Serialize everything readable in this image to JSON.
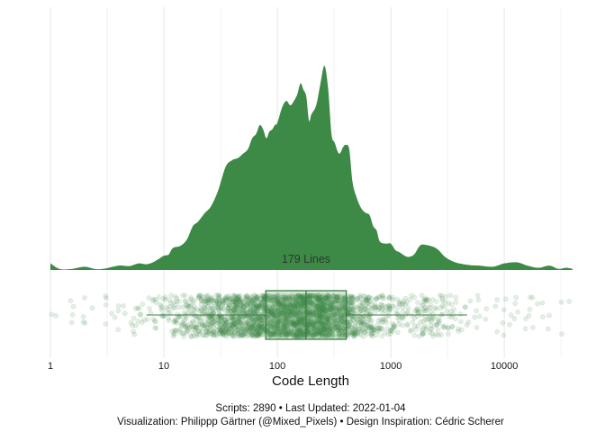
{
  "chart_data": {
    "type": "area",
    "subtype": "density + jittered points + boxplot (raincloud)",
    "xscale": "log10",
    "xlim": [
      1,
      40000
    ],
    "xlabel": "Code Length",
    "ticks": [
      1,
      10,
      100,
      1000,
      10000
    ],
    "tick_labels": [
      "1",
      "10",
      "100",
      "1000",
      "10000"
    ],
    "grid": "vertical major and minor lines",
    "fill_color": "#3d8a47",
    "point_color": "#3d8a47",
    "density": {
      "x": [
        1,
        1.2,
        1.5,
        2,
        2.5,
        3,
        4,
        5,
        6,
        7,
        8,
        9,
        10,
        11,
        12,
        14,
        16,
        18,
        20,
        23,
        26,
        30,
        35,
        40,
        45,
        50,
        55,
        60,
        65,
        70,
        75,
        80,
        85,
        90,
        95,
        100,
        110,
        120,
        130,
        140,
        150,
        160,
        170,
        180,
        190,
        200,
        220,
        240,
        260,
        280,
        300,
        320,
        350,
        380,
        400,
        430,
        460,
        500,
        550,
        600,
        650,
        700,
        750,
        800,
        900,
        1000,
        1100,
        1200,
        1400,
        1600,
        1800,
        2000,
        2500,
        3000,
        3500,
        4000,
        5000,
        6000,
        8000,
        10000,
        13000,
        16000,
        20000,
        25000,
        30000,
        35000,
        40000
      ],
      "y": [
        0.03,
        0.005,
        0.004,
        0.015,
        0.004,
        0.006,
        0.02,
        0.018,
        0.03,
        0.026,
        0.035,
        0.05,
        0.065,
        0.07,
        0.1,
        0.11,
        0.14,
        0.2,
        0.22,
        0.26,
        0.29,
        0.36,
        0.47,
        0.5,
        0.51,
        0.53,
        0.55,
        0.6,
        0.62,
        0.66,
        0.64,
        0.6,
        0.63,
        0.64,
        0.66,
        0.67,
        0.74,
        0.77,
        0.75,
        0.77,
        0.8,
        0.85,
        0.82,
        0.79,
        0.68,
        0.71,
        0.75,
        0.85,
        0.93,
        0.83,
        0.62,
        0.58,
        0.53,
        0.56,
        0.57,
        0.55,
        0.4,
        0.33,
        0.28,
        0.26,
        0.25,
        0.2,
        0.18,
        0.13,
        0.12,
        0.12,
        0.09,
        0.08,
        0.06,
        0.07,
        0.11,
        0.115,
        0.1,
        0.06,
        0.04,
        0.03,
        0.022,
        0.02,
        0.015,
        0.03,
        0.035,
        0.02,
        0.01,
        0.02,
        0.005,
        0.01,
        0.005
      ]
    },
    "boxplot": {
      "whisker_low": 7,
      "q1": 79,
      "median": 179,
      "q3": 405,
      "whisker_high": 4700
    },
    "median_label": "179 Lines",
    "points": {
      "count": 2890
    },
    "caption_lines": [
      "Scripts: 2890 • Last Updated: 2022-01-04",
      "Visualization: Philippp Gärtner (@Mixed_Pixels) • Design Inspiration: Cédric Scherer"
    ]
  }
}
